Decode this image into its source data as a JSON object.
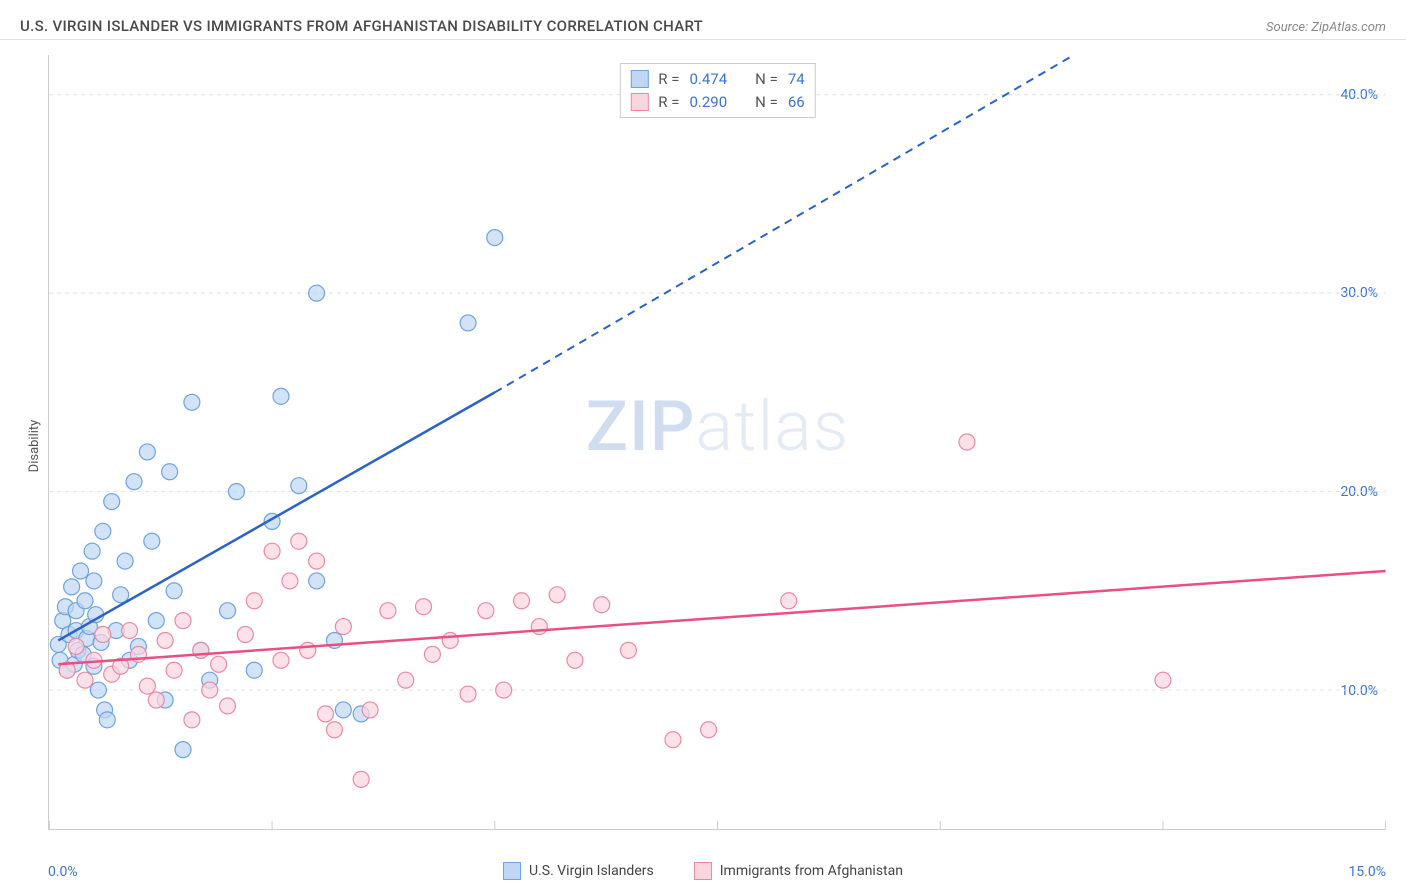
{
  "title": "U.S. VIRGIN ISLANDER VS IMMIGRANTS FROM AFGHANISTAN DISABILITY CORRELATION CHART",
  "source": "Source: ZipAtlas.com",
  "ylabel": "Disability",
  "watermark_zip": "ZIP",
  "watermark_atlas": "atlas",
  "xlim": [
    0,
    15
  ],
  "ylim": [
    3,
    42
  ],
  "x_start_label": "0.0%",
  "x_end_label": "15.0%",
  "x_ticks_minor": [
    0,
    2.5,
    5,
    7.5,
    10,
    12.5,
    15
  ],
  "y_ticks": [
    {
      "v": 10,
      "label": "10.0%"
    },
    {
      "v": 20,
      "label": "20.0%"
    },
    {
      "v": 30,
      "label": "30.0%"
    },
    {
      "v": 40,
      "label": "40.0%"
    }
  ],
  "grid_color": "#e0e0e0",
  "background_color": "#ffffff",
  "colors": {
    "blue_fill": "#bfd6f4",
    "blue_stroke": "#6ea3e0",
    "blue_line": "#2a62c9",
    "blue_text": "#3b74d6",
    "pink_fill": "#fbd5de",
    "pink_stroke": "#e98aa4",
    "pink_line": "#e94f81",
    "pink_text": "#e05582"
  },
  "series": [
    {
      "key": "blue",
      "legend_label": "U.S. Virgin Islanders",
      "R_label": "R =",
      "R_value": "0.474",
      "N_label": "N =",
      "N_value": "74",
      "marker_radius": 8,
      "trend": {
        "x1": 0.1,
        "y1": 12.5,
        "x2": 5.0,
        "y2": 25.0,
        "dash_x2": 11.5,
        "dash_y2": 42.0
      },
      "points": [
        [
          0.1,
          12.3
        ],
        [
          0.12,
          11.5
        ],
        [
          0.15,
          13.5
        ],
        [
          0.18,
          14.2
        ],
        [
          0.2,
          11.0
        ],
        [
          0.22,
          12.8
        ],
        [
          0.25,
          15.2
        ],
        [
          0.28,
          11.3
        ],
        [
          0.3,
          13.0
        ],
        [
          0.3,
          14.0
        ],
        [
          0.32,
          12.0
        ],
        [
          0.35,
          16.0
        ],
        [
          0.38,
          11.8
        ],
        [
          0.4,
          14.5
        ],
        [
          0.42,
          12.6
        ],
        [
          0.45,
          13.2
        ],
        [
          0.48,
          17.0
        ],
        [
          0.5,
          11.2
        ],
        [
          0.5,
          15.5
        ],
        [
          0.52,
          13.8
        ],
        [
          0.55,
          10.0
        ],
        [
          0.58,
          12.4
        ],
        [
          0.6,
          18.0
        ],
        [
          0.62,
          9.0
        ],
        [
          0.65,
          8.5
        ],
        [
          0.7,
          19.5
        ],
        [
          0.75,
          13.0
        ],
        [
          0.8,
          14.8
        ],
        [
          0.85,
          16.5
        ],
        [
          0.9,
          11.5
        ],
        [
          0.95,
          20.5
        ],
        [
          1.0,
          12.2
        ],
        [
          1.1,
          22.0
        ],
        [
          1.15,
          17.5
        ],
        [
          1.2,
          13.5
        ],
        [
          1.3,
          9.5
        ],
        [
          1.35,
          21.0
        ],
        [
          1.4,
          15.0
        ],
        [
          1.5,
          7.0
        ],
        [
          1.6,
          24.5
        ],
        [
          1.7,
          12.0
        ],
        [
          1.8,
          10.5
        ],
        [
          2.0,
          14.0
        ],
        [
          2.1,
          20.0
        ],
        [
          2.3,
          11.0
        ],
        [
          2.5,
          18.5
        ],
        [
          2.6,
          24.8
        ],
        [
          2.8,
          20.3
        ],
        [
          3.0,
          15.5
        ],
        [
          3.0,
          30.0
        ],
        [
          3.2,
          12.5
        ],
        [
          3.3,
          9.0
        ],
        [
          3.5,
          8.8
        ],
        [
          4.7,
          28.5
        ],
        [
          5.0,
          32.8
        ]
      ]
    },
    {
      "key": "pink",
      "legend_label": "Immigrants from Afghanistan",
      "R_label": "R =",
      "R_value": "0.290",
      "N_label": "N =",
      "N_value": "66",
      "marker_radius": 8,
      "trend": {
        "x1": 0.1,
        "y1": 11.3,
        "x2": 15.0,
        "y2": 16.0
      },
      "points": [
        [
          0.2,
          11.0
        ],
        [
          0.3,
          12.2
        ],
        [
          0.4,
          10.5
        ],
        [
          0.5,
          11.5
        ],
        [
          0.6,
          12.8
        ],
        [
          0.7,
          10.8
        ],
        [
          0.8,
          11.2
        ],
        [
          0.9,
          13.0
        ],
        [
          1.0,
          11.8
        ],
        [
          1.1,
          10.2
        ],
        [
          1.2,
          9.5
        ],
        [
          1.3,
          12.5
        ],
        [
          1.4,
          11.0
        ],
        [
          1.5,
          13.5
        ],
        [
          1.6,
          8.5
        ],
        [
          1.7,
          12.0
        ],
        [
          1.8,
          10.0
        ],
        [
          1.9,
          11.3
        ],
        [
          2.0,
          9.2
        ],
        [
          2.2,
          12.8
        ],
        [
          2.3,
          14.5
        ],
        [
          2.5,
          17.0
        ],
        [
          2.6,
          11.5
        ],
        [
          2.7,
          15.5
        ],
        [
          2.8,
          17.5
        ],
        [
          2.9,
          12.0
        ],
        [
          3.0,
          16.5
        ],
        [
          3.1,
          8.8
        ],
        [
          3.2,
          8.0
        ],
        [
          3.3,
          13.2
        ],
        [
          3.5,
          5.5
        ],
        [
          3.6,
          9.0
        ],
        [
          3.8,
          14.0
        ],
        [
          4.0,
          10.5
        ],
        [
          4.2,
          14.2
        ],
        [
          4.3,
          11.8
        ],
        [
          4.5,
          12.5
        ],
        [
          4.7,
          9.8
        ],
        [
          4.9,
          14.0
        ],
        [
          5.1,
          10.0
        ],
        [
          5.3,
          14.5
        ],
        [
          5.5,
          13.2
        ],
        [
          5.7,
          14.8
        ],
        [
          5.9,
          11.5
        ],
        [
          6.2,
          14.3
        ],
        [
          6.5,
          12.0
        ],
        [
          7.0,
          7.5
        ],
        [
          7.4,
          8.0
        ],
        [
          8.3,
          14.5
        ],
        [
          10.3,
          22.5
        ],
        [
          12.5,
          10.5
        ]
      ]
    }
  ]
}
